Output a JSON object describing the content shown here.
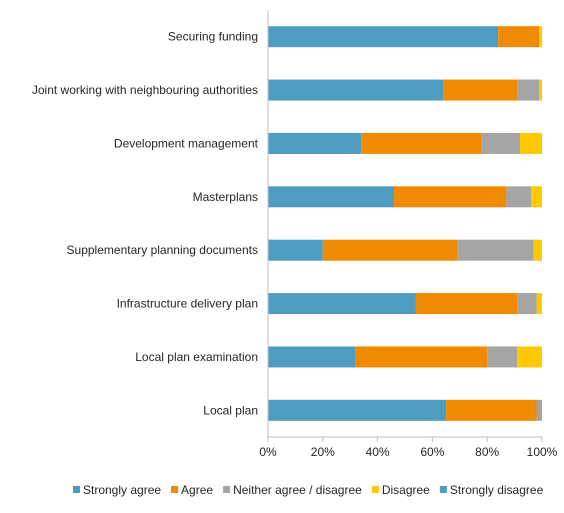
{
  "chart_data": {
    "type": "bar",
    "orientation": "horizontal",
    "stacking": "percent",
    "categories": [
      "Securing funding",
      "Joint working with neighbouring authorities",
      "Development management",
      "Masterplans",
      "Supplementary planning documents",
      "Infrastructure delivery plan",
      "Local plan examination",
      "Local plan"
    ],
    "series": [
      {
        "name": "Strongly agree",
        "color": "#4E9DC0",
        "values": [
          84,
          64,
          34,
          46,
          20,
          54,
          32,
          65
        ]
      },
      {
        "name": "Agree",
        "color": "#F08A00",
        "values": [
          15,
          27,
          44,
          41,
          49,
          37,
          48,
          33
        ]
      },
      {
        "name": "Neither agree / disagree",
        "color": "#A5A5A5",
        "values": [
          0,
          8,
          14,
          9,
          28,
          7,
          11,
          2
        ]
      },
      {
        "name": "Disagree",
        "color": "#FFC800",
        "values": [
          1,
          1,
          8,
          4,
          3,
          2,
          9,
          0
        ]
      },
      {
        "name": "Strongly disagree",
        "color": "#4E9DC0",
        "values": [
          0,
          0,
          0,
          0,
          0,
          0,
          0,
          0
        ]
      }
    ],
    "xlim": [
      0,
      100
    ],
    "x_ticks": [
      "0%",
      "20%",
      "40%",
      "60%",
      "80%",
      "100%"
    ],
    "grid": false,
    "legend_position": "bottom"
  }
}
